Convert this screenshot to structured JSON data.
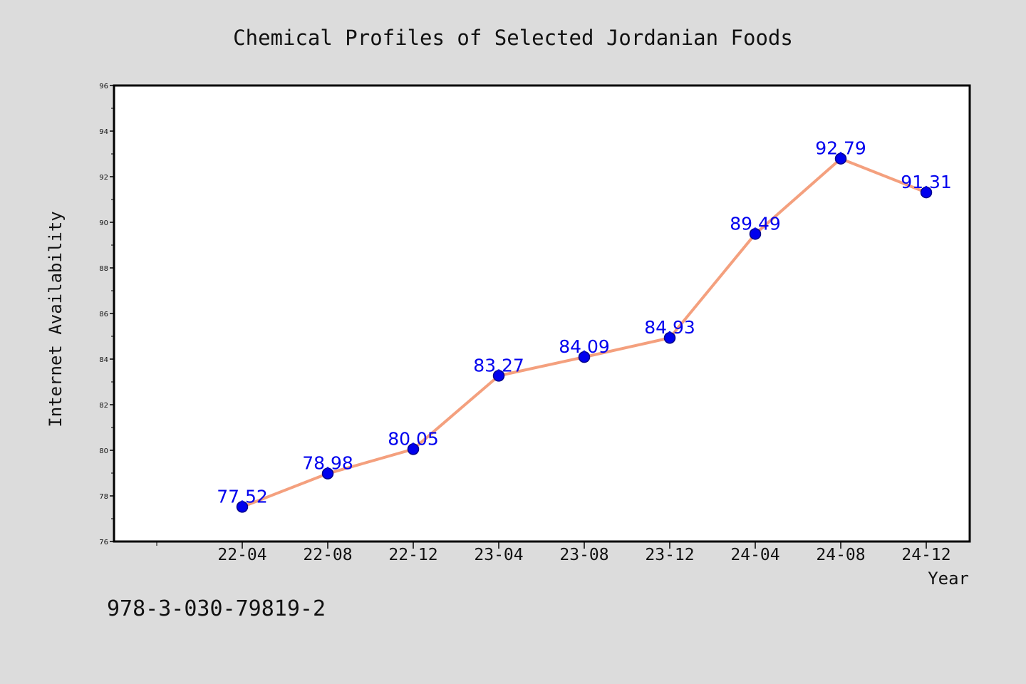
{
  "chart_data": {
    "type": "line",
    "title": "Chemical Profiles of Selected Jordanian Foods",
    "xlabel": "Year",
    "ylabel": "Internet Availability",
    "categories": [
      "22-04",
      "22-08",
      "22-12",
      "23-04",
      "23-08",
      "23-12",
      "24-04",
      "24-08",
      "24-12"
    ],
    "series": [
      {
        "values": [
          77.52,
          78.98,
          80.05,
          83.27,
          84.09,
          84.93,
          89.49,
          92.79,
          91.31
        ]
      }
    ],
    "data_labels": [
      "77.52",
      "78.98",
      "80.05",
      "83.27",
      "84.09",
      "84.93",
      "89.49",
      "92.79",
      "91.31"
    ],
    "ylim": [
      76,
      96
    ],
    "y_ticks": [
      76,
      78,
      80,
      82,
      84,
      86,
      88,
      90,
      92,
      94,
      96
    ],
    "grid": false,
    "legend": "none",
    "colors": {
      "line": "#f4a07e",
      "marker": "#0000ee",
      "marker_edge": "#00008b",
      "data_label": "#0000ee",
      "background": "#dcdcdc",
      "plot_area": "#ffffff"
    }
  },
  "footer": {
    "isbn": "978-3-030-79819-2"
  }
}
